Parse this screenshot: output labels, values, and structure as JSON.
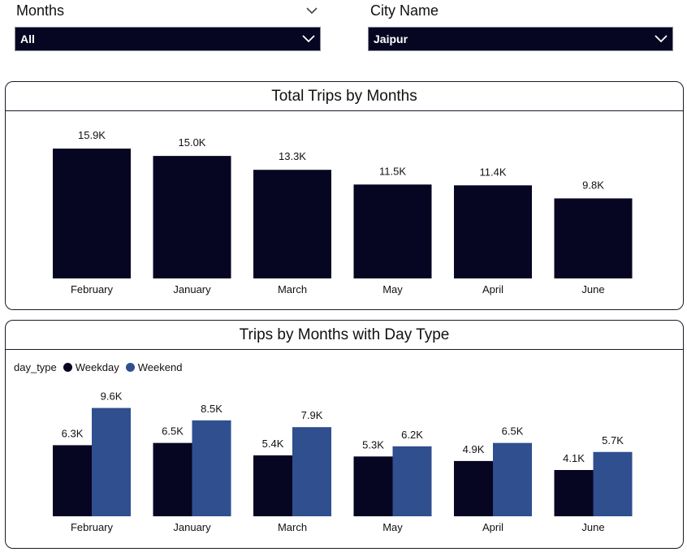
{
  "slicers": {
    "months": {
      "label": "Months",
      "value": "All"
    },
    "city": {
      "label": "City Name",
      "value": "Jaipur"
    }
  },
  "colors": {
    "weekday": "#070622",
    "weekend": "#2f4f8f"
  },
  "chart_data": [
    {
      "type": "bar",
      "title": "Total Trips by Months",
      "categories": [
        "February",
        "January",
        "March",
        "May",
        "April",
        "June"
      ],
      "values": [
        15.9,
        15.0,
        13.3,
        11.5,
        11.4,
        9.8
      ],
      "data_labels": [
        "15.9K",
        "15.0K",
        "13.3K",
        "11.5K",
        "11.4K",
        "9.8K"
      ],
      "unit": "K",
      "ylim": [
        0,
        16
      ],
      "xlabel": "",
      "ylabel": "",
      "grid": false
    },
    {
      "type": "bar",
      "title": "Trips by Months with Day Type",
      "legend_title": "day_type",
      "legend_position": "top-left",
      "categories": [
        "February",
        "January",
        "March",
        "May",
        "April",
        "June"
      ],
      "series": [
        {
          "name": "Weekday",
          "values": [
            6.3,
            6.5,
            5.4,
            5.3,
            4.9,
            4.1
          ],
          "data_labels": [
            "6.3K",
            "6.5K",
            "5.4K",
            "5.3K",
            "4.9K",
            "4.1K"
          ]
        },
        {
          "name": "Weekend",
          "values": [
            9.6,
            8.5,
            7.9,
            6.2,
            6.5,
            5.7
          ],
          "data_labels": [
            "9.6K",
            "8.5K",
            "7.9K",
            "6.2K",
            "6.5K",
            "5.7K"
          ]
        }
      ],
      "unit": "K",
      "ylim": [
        0,
        10
      ],
      "xlabel": "",
      "ylabel": "",
      "grid": false
    }
  ]
}
